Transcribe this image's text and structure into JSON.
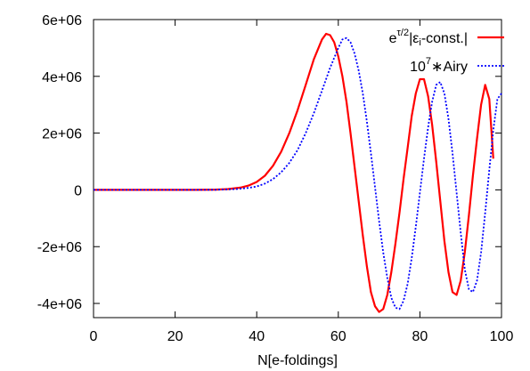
{
  "chart_data": {
    "type": "line",
    "xlabel": "N[e-foldings]",
    "ylabel": "",
    "xlim": [
      0,
      100
    ],
    "ylim": [
      -4500000,
      6000000
    ],
    "x_ticks": [
      0,
      20,
      40,
      60,
      80,
      100
    ],
    "x_tick_labels": [
      "0",
      "20",
      "40",
      "60",
      "80",
      "100"
    ],
    "y_ticks": [
      -4000000,
      -2000000,
      0,
      2000000,
      4000000,
      6000000
    ],
    "y_tick_labels": [
      "-4e+06",
      "-2e+06",
      "0",
      "2e+06",
      "4e+06",
      "6e+06"
    ],
    "grid": false,
    "legend_position": "top-right",
    "series": [
      {
        "name": "e^{τ/2}|ε_i-const.|",
        "legend": {
          "base": "e",
          "sup": "τ/2",
          "mid": "|ε",
          "sub": "i",
          "tail": "-const.|"
        },
        "color": "#ff0000",
        "style": "solid",
        "x": [
          0,
          10,
          20,
          25,
          30,
          33,
          36,
          38,
          40,
          42,
          44,
          46,
          48,
          50,
          52,
          54,
          56,
          57,
          58,
          59,
          60,
          61,
          62,
          63,
          64,
          65,
          66,
          67,
          68,
          69,
          70,
          71,
          72,
          73,
          74,
          75,
          76,
          77,
          78,
          79,
          80,
          81,
          82,
          83,
          84,
          85,
          86,
          87,
          88,
          89,
          90,
          91,
          92,
          93,
          94,
          95,
          96,
          97,
          98
        ],
        "y": [
          0,
          0,
          0,
          2000,
          10000,
          30000,
          80000,
          150000,
          280000,
          500000,
          850000,
          1350000,
          2000000,
          2800000,
          3700000,
          4600000,
          5300000,
          5500000,
          5450000,
          5200000,
          4700000,
          4000000,
          3100000,
          2000000,
          800000,
          -400000,
          -1600000,
          -2700000,
          -3600000,
          -4100000,
          -4300000,
          -4200000,
          -3700000,
          -2900000,
          -1900000,
          -800000,
          400000,
          1500000,
          2600000,
          3400000,
          3900000,
          3900000,
          3300000,
          2300000,
          1000000,
          -400000,
          -1800000,
          -2900000,
          -3600000,
          -3700000,
          -3200000,
          -2200000,
          -900000,
          500000,
          1800000,
          3000000,
          3700000,
          3200000,
          1100000
        ]
      },
      {
        "name": "10^{7}*Airy",
        "legend": {
          "base": "10",
          "sup": "7",
          "tail": "∗Airy"
        },
        "color": "#0000ff",
        "style": "dotted",
        "x": [
          0,
          10,
          20,
          25,
          30,
          35,
          38,
          40,
          42,
          44,
          46,
          48,
          50,
          52,
          54,
          56,
          58,
          60,
          61,
          62,
          63,
          64,
          65,
          66,
          67,
          68,
          69,
          70,
          71,
          72,
          73,
          74,
          75,
          76,
          77,
          78,
          79,
          80,
          81,
          82,
          83,
          84,
          85,
          86,
          87,
          88,
          89,
          90,
          91,
          92,
          93,
          94,
          95,
          96,
          97,
          98,
          99,
          100
        ],
        "y": [
          0,
          0,
          0,
          1000,
          5000,
          30000,
          70000,
          120000,
          220000,
          380000,
          620000,
          950000,
          1400000,
          2000000,
          2700000,
          3500000,
          4300000,
          5000000,
          5300000,
          5350000,
          5200000,
          4800000,
          4200000,
          3400000,
          2400000,
          1300000,
          100000,
          -1100000,
          -2200000,
          -3100000,
          -3800000,
          -4150000,
          -4200000,
          -3900000,
          -3300000,
          -2400000,
          -1300000,
          -100000,
          1100000,
          2200000,
          3100000,
          3700000,
          3800000,
          3400000,
          2500000,
          1300000,
          -100000,
          -1500000,
          -2800000,
          -3500000,
          -3600000,
          -3200000,
          -2200000,
          -800000,
          700000,
          2100000,
          3200000,
          3400000
        ]
      }
    ]
  }
}
